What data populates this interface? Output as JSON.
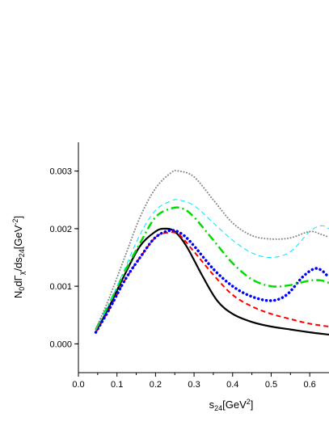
{
  "chart_data": {
    "type": "line",
    "title": "",
    "xlabel": "s",
    "xlabel_sub": "24",
    "xlabel_unit_prefix": "[GeV",
    "xlabel_unit_sup": "2",
    "xlabel_unit_suffix": "]",
    "ylabel_parts": {
      "n": "N",
      "n_sub": "0",
      "d1": "d",
      "gamma": "Γ",
      "gamma_sub": "χ",
      "div": "/ds",
      "s_sub": "24",
      "unit_prefix": "[GeV",
      "unit_sup": "-2",
      "unit_suffix": "]"
    },
    "xlim": [
      0.0,
      0.65
    ],
    "ylim": [
      -0.0005,
      0.0035
    ],
    "xticks": [
      0.0,
      0.1,
      0.2,
      0.3,
      0.4,
      0.5,
      0.6
    ],
    "xtick_labels": [
      "0.0",
      "0.1",
      "0.2",
      "0.3",
      "0.4",
      "0.5",
      "0.6"
    ],
    "yticks": [
      0.0,
      0.001,
      0.002,
      0.003
    ],
    "ytick_labels": [
      "0.000",
      "0.001",
      "0.002",
      "0.003"
    ],
    "grid": false,
    "legend": "none",
    "series": [
      {
        "color": "#000000",
        "style": "solid",
        "x": [
          0.045,
          0.08,
          0.12,
          0.16,
          0.2,
          0.225,
          0.25,
          0.28,
          0.32,
          0.36,
          0.4,
          0.45,
          0.5,
          0.55,
          0.6,
          0.65
        ],
        "y": [
          0.0002,
          0.00065,
          0.0012,
          0.0017,
          0.00195,
          0.002,
          0.00195,
          0.0017,
          0.0012,
          0.00075,
          0.00052,
          0.00038,
          0.0003,
          0.00025,
          0.0002,
          0.00016
        ]
      },
      {
        "color": "#ff0000",
        "style": "dashed",
        "x": [
          0.045,
          0.08,
          0.12,
          0.16,
          0.2,
          0.23,
          0.26,
          0.3,
          0.35,
          0.4,
          0.45,
          0.5,
          0.55,
          0.6,
          0.65
        ],
        "y": [
          0.0002,
          0.0006,
          0.0011,
          0.0015,
          0.00185,
          0.00193,
          0.0019,
          0.0016,
          0.0012,
          0.00085,
          0.00065,
          0.00052,
          0.00043,
          0.00035,
          0.0003
        ]
      },
      {
        "color": "#0000ff",
        "style": "dotted",
        "x": [
          0.045,
          0.08,
          0.12,
          0.16,
          0.2,
          0.24,
          0.27,
          0.3,
          0.35,
          0.4,
          0.45,
          0.5,
          0.54,
          0.58,
          0.61,
          0.63,
          0.65
        ],
        "y": [
          0.0002,
          0.0006,
          0.0011,
          0.0015,
          0.00185,
          0.00197,
          0.0019,
          0.0017,
          0.0013,
          0.001,
          0.00082,
          0.00075,
          0.00085,
          0.00115,
          0.0013,
          0.00128,
          0.00115
        ]
      },
      {
        "color": "#00dd00",
        "style": "dashdot",
        "x": [
          0.045,
          0.08,
          0.12,
          0.16,
          0.2,
          0.24,
          0.27,
          0.3,
          0.35,
          0.4,
          0.45,
          0.5,
          0.55,
          0.6,
          0.63,
          0.65
        ],
        "y": [
          0.00025,
          0.0007,
          0.00125,
          0.00175,
          0.0022,
          0.00235,
          0.00235,
          0.0022,
          0.0018,
          0.0014,
          0.00112,
          0.001,
          0.00102,
          0.0011,
          0.0011,
          0.00106
        ]
      },
      {
        "color": "#00e5ff",
        "style": "dashed",
        "x": [
          0.045,
          0.08,
          0.12,
          0.16,
          0.2,
          0.24,
          0.26,
          0.3,
          0.35,
          0.4,
          0.45,
          0.5,
          0.55,
          0.6,
          0.63,
          0.65
        ],
        "y": [
          0.00025,
          0.0007,
          0.0013,
          0.0019,
          0.00232,
          0.00248,
          0.0025,
          0.0024,
          0.0021,
          0.0018,
          0.00158,
          0.0015,
          0.0016,
          0.00195,
          0.00205,
          0.002
        ]
      },
      {
        "color": "#888888",
        "style": "dotted",
        "x": [
          0.045,
          0.08,
          0.12,
          0.16,
          0.2,
          0.24,
          0.26,
          0.3,
          0.35,
          0.4,
          0.45,
          0.5,
          0.55,
          0.6,
          0.63,
          0.65
        ],
        "y": [
          0.00025,
          0.0008,
          0.0015,
          0.0022,
          0.0027,
          0.00297,
          0.003,
          0.0029,
          0.0025,
          0.0021,
          0.00188,
          0.00182,
          0.00184,
          0.00195,
          0.0019,
          0.00185
        ]
      }
    ]
  }
}
